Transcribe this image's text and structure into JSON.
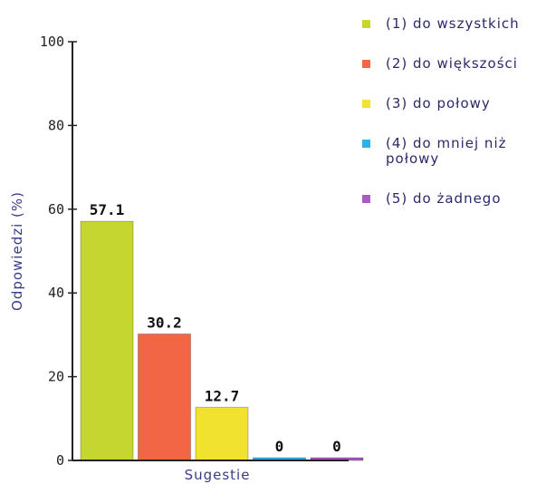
{
  "chart_data": {
    "type": "bar",
    "categories": [
      "(1) do wszystkich",
      "(2) do większości",
      "(3) do połowy",
      "(4) do mniej niż połowy",
      "(5) do żadnego"
    ],
    "values": [
      57.1,
      30.2,
      12.7,
      0,
      0
    ],
    "value_labels": [
      "57.1",
      "30.2",
      "12.7",
      "0",
      "0"
    ],
    "colors": [
      "#c6d630",
      "#f26545",
      "#f2e230",
      "#2bb3e6",
      "#a65cc0"
    ],
    "xlabel": "Sugestie",
    "ylabel": "Odpowiedzi (%)",
    "ylim": [
      0,
      100
    ],
    "yticks": [
      "0",
      "20",
      "40",
      "60",
      "80",
      "100"
    ],
    "legend_position": "right",
    "grid": false
  }
}
